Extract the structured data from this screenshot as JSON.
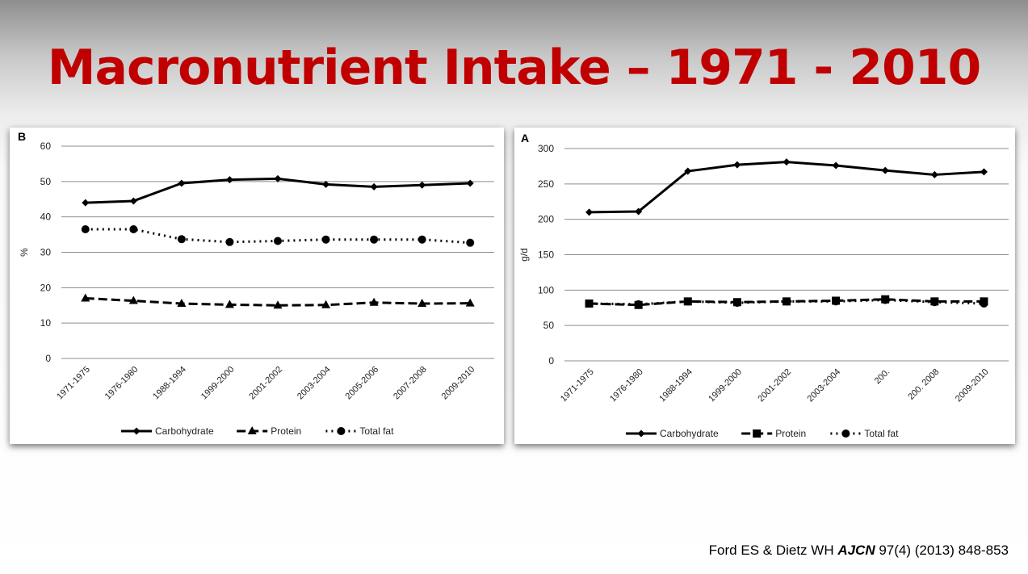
{
  "slide": {
    "title": "Macronutrient Intake – 1971 - 2010",
    "citation_authors": "Ford ES & Dietz WH ",
    "citation_journal": "AJCN",
    "citation_rest": " 97(4) (2013) 848-853"
  },
  "chart_data": [
    {
      "type": "line",
      "panel_label": "B",
      "ylabel": "%",
      "ylim": [
        0,
        60
      ],
      "yticks": [
        0,
        10,
        20,
        30,
        40,
        50,
        60
      ],
      "grid": true,
      "legend_position": "bottom",
      "categories": [
        "1971-1975",
        "1976-1980",
        "1988-1994",
        "1999-2000",
        "2001-2002",
        "2003-2004",
        "2005-2006",
        "2007-2008",
        "2009-2010"
      ],
      "series": [
        {
          "name": "Carbohydrate",
          "marker": "diamond",
          "dash": "solid",
          "values": [
            44,
            44.5,
            49.5,
            50.5,
            50.8,
            49.2,
            48.5,
            49,
            49.5
          ]
        },
        {
          "name": "Protein",
          "marker": "triangle",
          "dash": "dashed",
          "values": [
            17,
            16.3,
            15.5,
            15.2,
            15,
            15.1,
            15.8,
            15.5,
            15.6
          ]
        },
        {
          "name": "Total fat",
          "marker": "circle",
          "dash": "dotted",
          "values": [
            36.5,
            36.5,
            33.7,
            32.9,
            33.2,
            33.6,
            33.6,
            33.6,
            32.7
          ]
        }
      ]
    },
    {
      "type": "line",
      "panel_label": "A",
      "ylabel": "g/d",
      "ylim": [
        0,
        300
      ],
      "yticks": [
        0,
        50,
        100,
        150,
        200,
        250,
        300
      ],
      "grid": true,
      "legend_position": "bottom",
      "categories": [
        "1971-1975",
        "1976-1980",
        "1988-1994",
        "1999-2000",
        "2001-2002",
        "2003-2004",
        "200.",
        "200. 2008",
        "2009-2010"
      ],
      "series": [
        {
          "name": "Carbohydrate",
          "marker": "diamond",
          "dash": "solid",
          "values": [
            210,
            211,
            268,
            277,
            281,
            276,
            269,
            263,
            267
          ]
        },
        {
          "name": "Protein",
          "marker": "square",
          "dash": "dashed",
          "values": [
            81,
            79,
            84,
            83,
            84,
            85,
            87,
            84,
            84
          ]
        },
        {
          "name": "Total fat",
          "marker": "circle",
          "dash": "dotted",
          "values": [
            81,
            80,
            84,
            82,
            84,
            84,
            86,
            83,
            81
          ]
        }
      ]
    }
  ]
}
